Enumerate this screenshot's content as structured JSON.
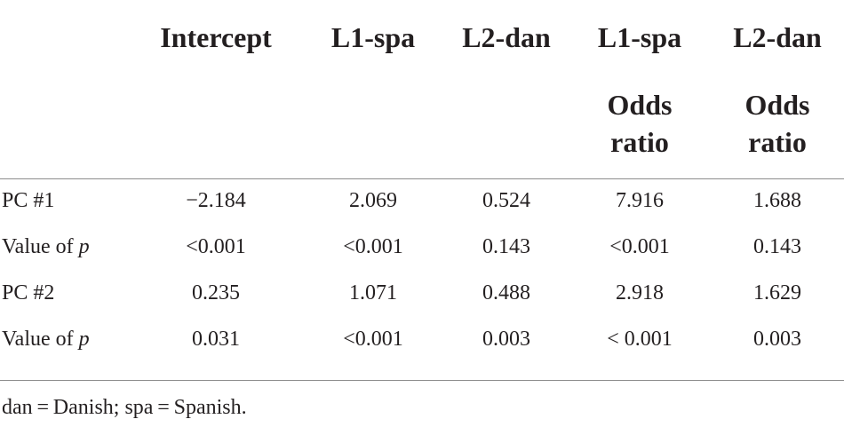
{
  "table": {
    "headers": [
      "Intercept",
      "L1-spa",
      "L2-dan",
      "L1-spa",
      "L2-dan"
    ],
    "subheaders": [
      "",
      "",
      "",
      "Odds ratio",
      "Odds ratio"
    ],
    "subheader_lines": [
      [
        "Odds",
        "ratio"
      ],
      [
        "Odds",
        "ratio"
      ]
    ],
    "rows": [
      {
        "label": "PC #1",
        "label_prefix": "PC #1",
        "label_italic": "",
        "cells": [
          "−2.184",
          "2.069",
          "0.524",
          "7.916",
          "1.688"
        ]
      },
      {
        "label": "Value of p",
        "label_prefix": "Value of ",
        "label_italic": "p",
        "cells": [
          "<0.001",
          "<0.001",
          "0.143",
          "<0.001",
          "0.143"
        ]
      },
      {
        "label": "PC #2",
        "label_prefix": "PC #2",
        "label_italic": "",
        "cells": [
          "0.235",
          "1.071",
          "0.488",
          "2.918",
          "1.629"
        ]
      },
      {
        "label": "Value of p",
        "label_prefix": "Value of ",
        "label_italic": "p",
        "cells": [
          "0.031",
          "<0.001",
          "0.003",
          "< 0.001",
          "0.003"
        ]
      }
    ],
    "footnote": "dan = Danish; spa = Spanish."
  }
}
